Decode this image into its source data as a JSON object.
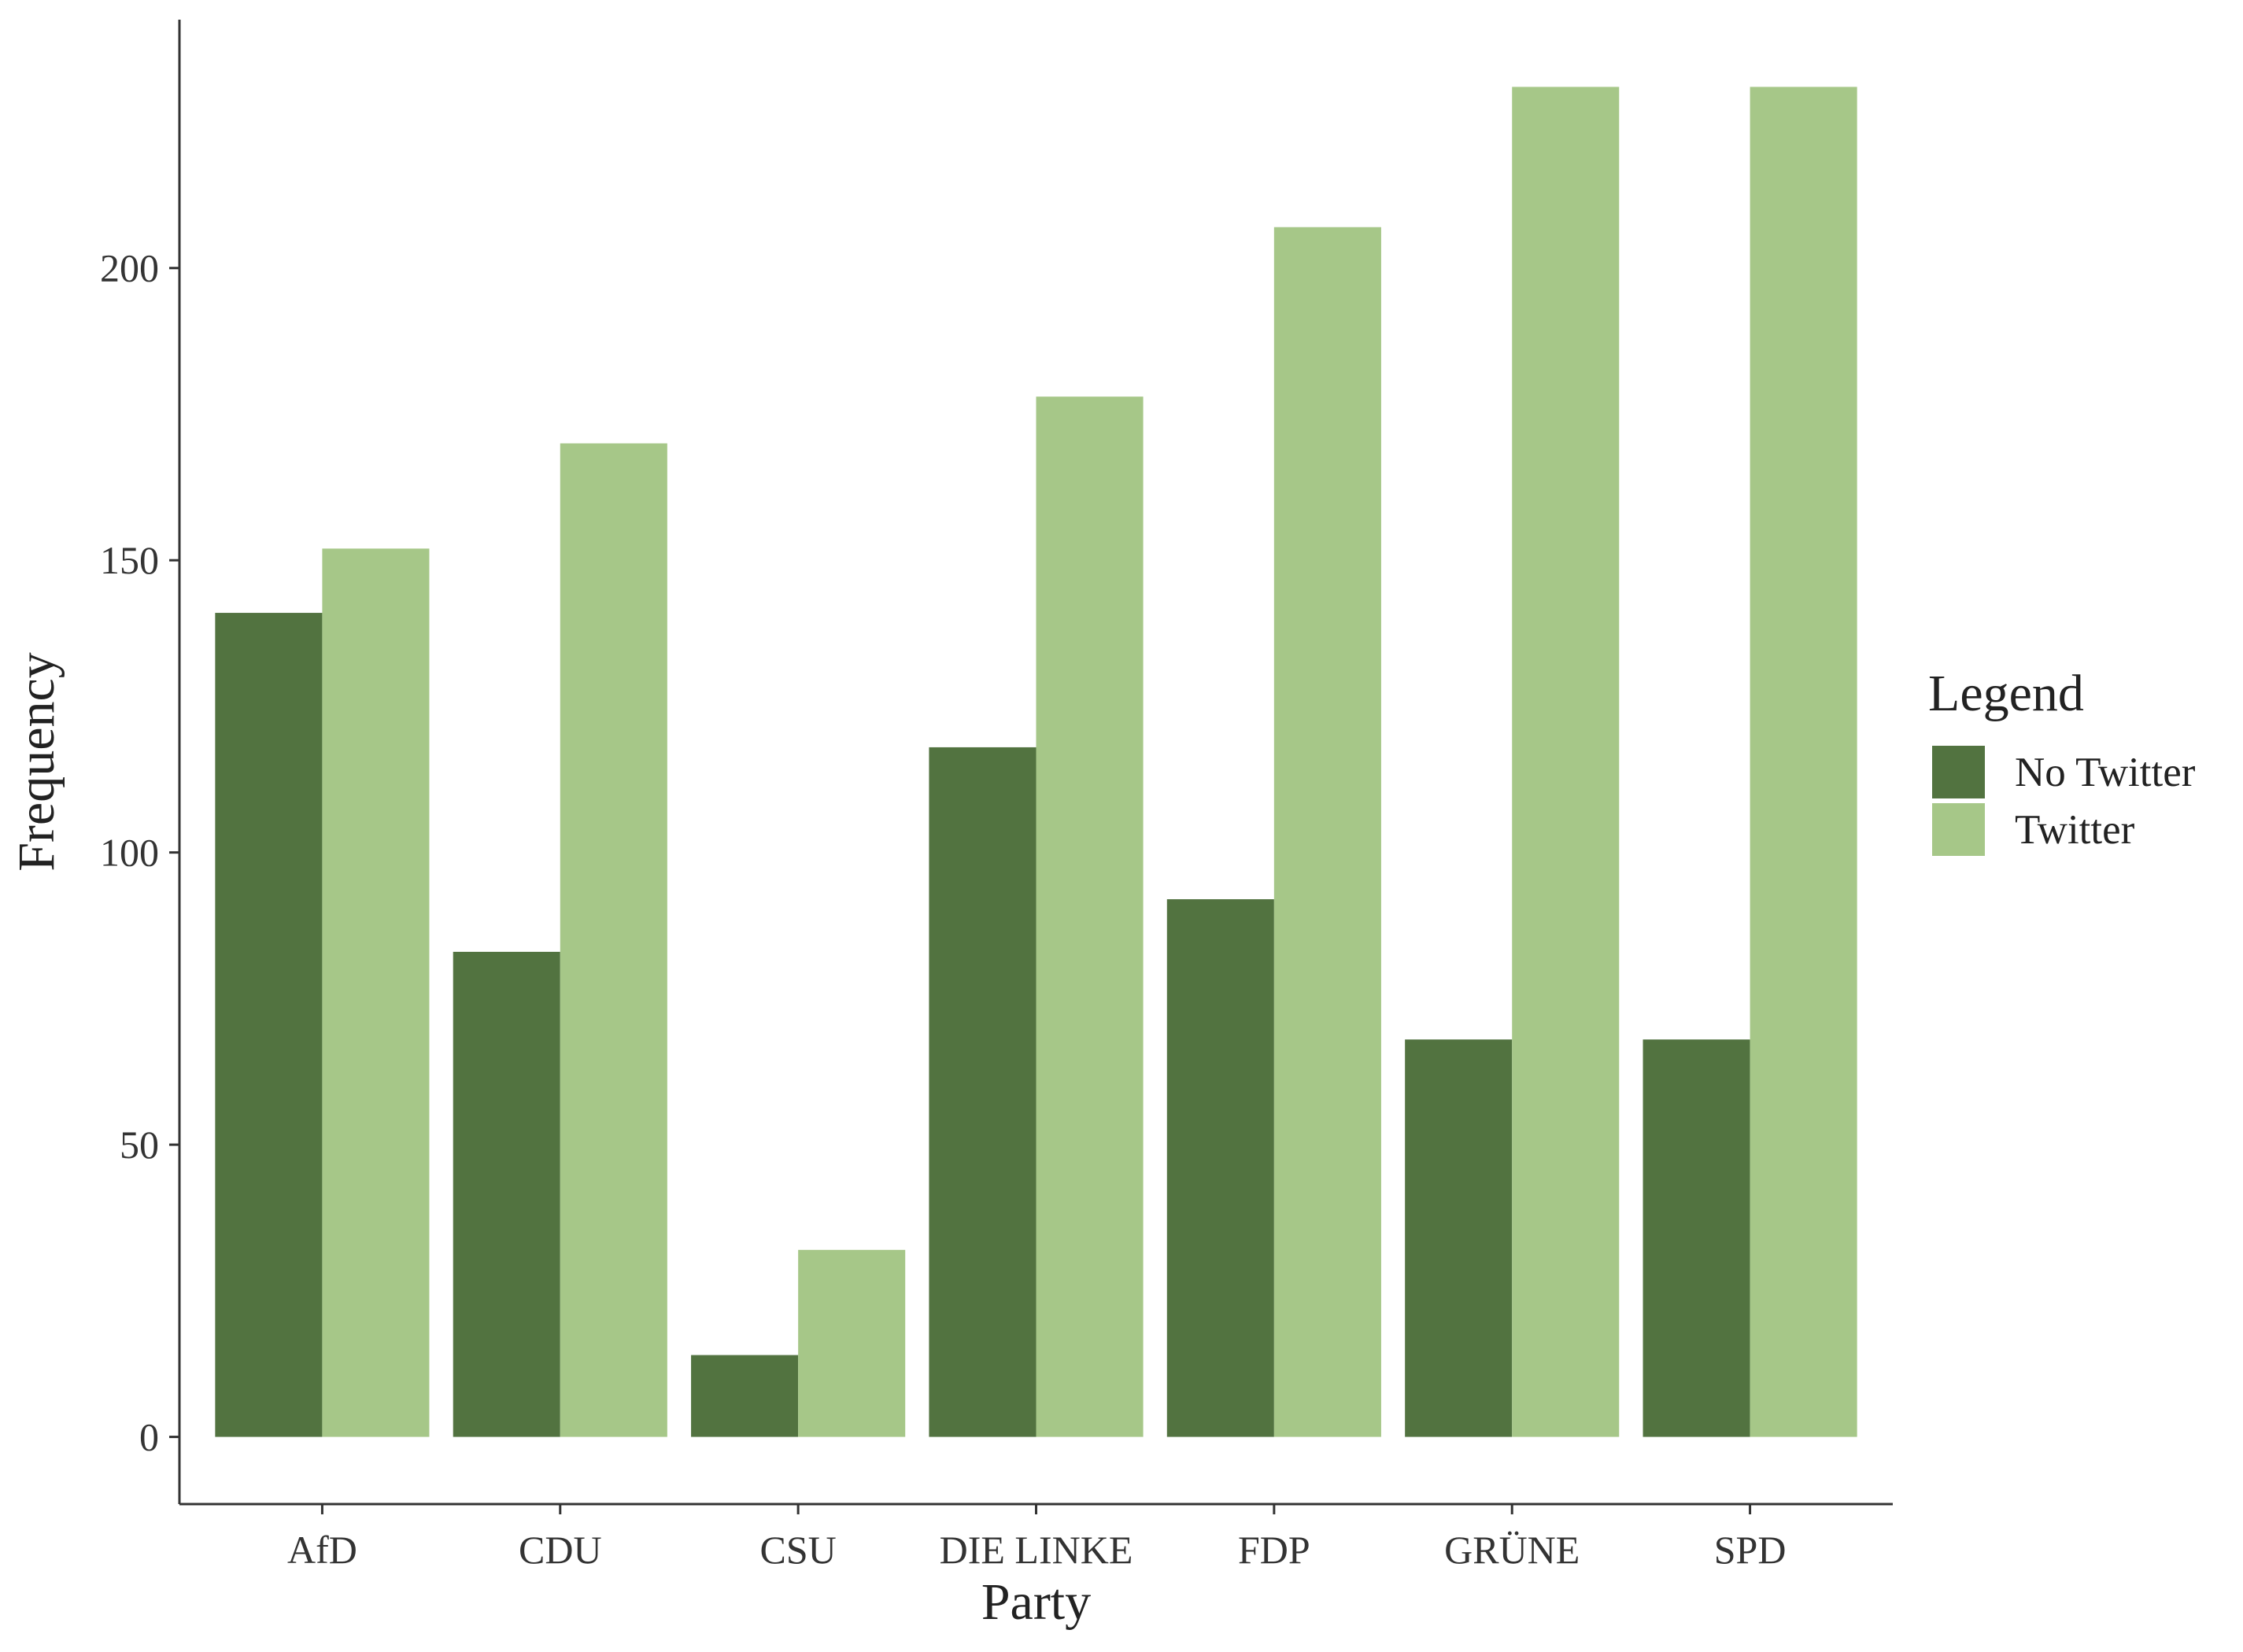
{
  "chart_data": {
    "type": "bar",
    "categories": [
      "AfD",
      "CDU",
      "CSU",
      "DIE LINKE",
      "FDP",
      "GRÜNE",
      "SPD"
    ],
    "series": [
      {
        "name": "No Twitter",
        "color": "#527340",
        "values": [
          141,
          83,
          14,
          118,
          92,
          68,
          68
        ]
      },
      {
        "name": "Twitter",
        "color": "#a6c788",
        "values": [
          152,
          170,
          32,
          178,
          207,
          231,
          231
        ]
      }
    ],
    "title": "",
    "xlabel": "Party",
    "ylabel": "Frequency",
    "ylim": [
      -11.5,
      242.5
    ],
    "yticks": [
      0,
      50,
      100,
      150,
      200
    ],
    "grid": false,
    "legend": {
      "title": "Legend",
      "position": "right"
    },
    "axis_color": "#333333"
  }
}
